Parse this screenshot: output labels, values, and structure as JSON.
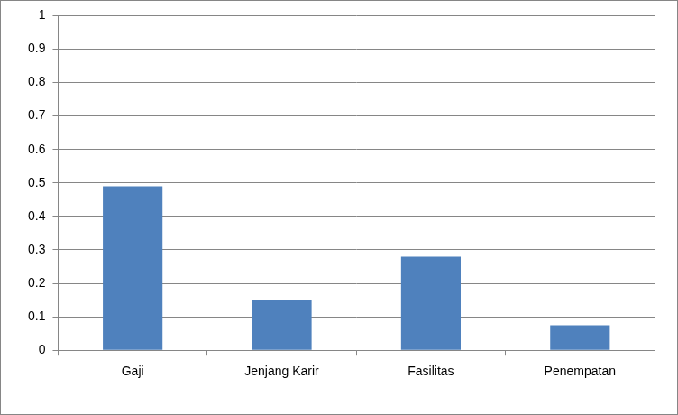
{
  "chart_data": {
    "type": "bar",
    "categories": [
      "Gaji",
      "Jenjang Karir",
      "Fasilitas",
      "Penempatan"
    ],
    "values": [
      0.49,
      0.15,
      0.28,
      0.075
    ],
    "color": "#4f81bd",
    "ylim": [
      0,
      1
    ],
    "yticks": [
      0,
      0.1,
      0.2,
      0.3,
      0.4,
      0.5,
      0.6,
      0.7,
      0.8,
      0.9,
      1
    ],
    "grid": true
  }
}
